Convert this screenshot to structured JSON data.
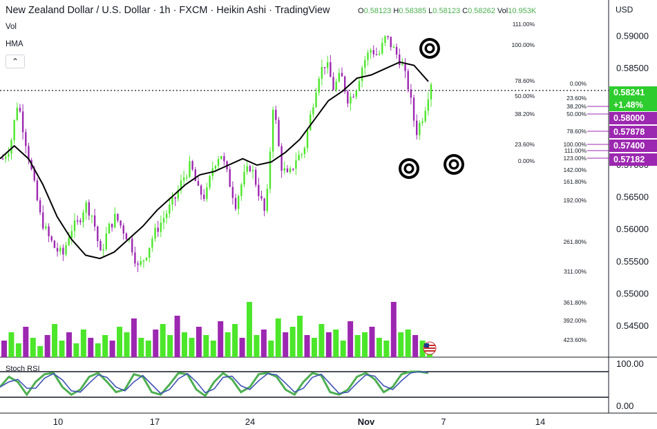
{
  "header": {
    "symbol_title": "New Zealand Dollar / U.S. Dollar · 1h · FXCM · Heikin Ashi · TradingView",
    "ohlc": [
      {
        "key": "O",
        "value": "0.58123"
      },
      {
        "key": "H",
        "value": "0.58385"
      },
      {
        "key": "L",
        "value": "0.58123"
      },
      {
        "key": "C",
        "value": "0.58262"
      },
      {
        "key": "Vol",
        "value": "10.953K"
      }
    ]
  },
  "indicators": {
    "vol": "Vol",
    "hma": "HMA",
    "stoch": "Stoch RSI"
  },
  "controls": {
    "collapse_icon": "chevron-up-icon"
  },
  "axis": {
    "currency": "USD",
    "price_ticks": [
      "0.59000",
      "0.58500",
      "0.58000",
      "0.57500",
      "0.57000",
      "0.56500",
      "0.56000",
      "0.55500",
      "0.55000",
      "0.54500"
    ],
    "stoch_ticks": [
      "100.00",
      "0.00"
    ],
    "date_ticks": [
      "10",
      "17",
      "24",
      "Nov",
      "7",
      "14"
    ]
  },
  "price_tags": [
    {
      "text": "0.58241",
      "color": "#2ecc2e"
    },
    {
      "text": "+1.48%",
      "color": "#2ecc2e"
    },
    {
      "text": "0.58000",
      "color": "#9c27b0"
    },
    {
      "text": "0.57878",
      "color": "#9c27b0"
    },
    {
      "text": "0.57400",
      "color": "#9c27b0"
    },
    {
      "text": "0.57182",
      "color": "#9c27b0"
    }
  ],
  "fib_left": [
    "111.00%",
    "100.00%",
    "78.60%",
    "50.00%",
    "38.20%",
    "23.60%",
    "0.00%"
  ],
  "fib_right": [
    "0.00%",
    "23.60%",
    "38.20%",
    "50.00%",
    "78.60%",
    "100.00%",
    "111.00%",
    "123.00%",
    "142.00%",
    "161.80%",
    "192.00%",
    "261.80%",
    "311.00%",
    "361.80%",
    "392.00%",
    "423.60%"
  ],
  "chart_data": {
    "type": "candlestick",
    "title": "New Zealand Dollar / U.S. Dollar · 1h · FXCM · Heikin Ashi · TradingView",
    "ylim": [
      0.542,
      0.5935
    ],
    "dates": [
      "10",
      "17",
      "24",
      "Nov",
      "7",
      "14"
    ],
    "price_path": [
      0.571,
      0.573,
      0.58,
      0.574,
      0.568,
      0.562,
      0.559,
      0.557,
      0.556,
      0.56,
      0.561,
      0.564,
      0.562,
      0.556,
      0.56,
      0.562,
      0.56,
      0.558,
      0.554,
      0.556,
      0.559,
      0.561,
      0.563,
      0.565,
      0.568,
      0.57,
      0.566,
      0.565,
      0.57,
      0.572,
      0.568,
      0.564,
      0.568,
      0.57,
      0.566,
      0.562,
      0.58,
      0.57,
      0.568,
      0.571,
      0.572,
      0.578,
      0.584,
      0.586,
      0.582,
      0.584,
      0.58,
      0.582,
      0.586,
      0.588,
      0.587,
      0.59,
      0.588,
      0.586,
      0.582,
      0.575,
      0.578,
      0.583
    ],
    "hma_path": [
      0.571,
      0.573,
      0.571,
      0.567,
      0.562,
      0.5585,
      0.556,
      0.5555,
      0.5565,
      0.5585,
      0.5605,
      0.563,
      0.565,
      0.567,
      0.5685,
      0.569,
      0.57,
      0.571,
      0.57,
      0.5705,
      0.572,
      0.574,
      0.577,
      0.58,
      0.5815,
      0.5835,
      0.584,
      0.585,
      0.586,
      0.5855,
      0.583
    ],
    "last_close": 0.58241,
    "change_pct": "+1.48%",
    "volume_k": [
      6,
      9,
      5,
      11,
      7,
      4,
      8,
      12,
      6,
      9,
      5,
      10,
      7,
      5,
      8,
      6,
      11,
      9,
      14,
      7,
      6,
      10,
      12,
      8,
      15,
      9,
      7,
      11,
      8,
      6,
      13,
      9,
      12,
      7,
      20,
      8,
      10,
      6,
      14,
      9,
      11,
      15,
      8,
      7,
      12,
      9,
      10,
      6,
      13,
      8,
      9,
      11,
      7,
      6,
      20,
      9,
      10,
      8,
      6,
      5
    ],
    "stoch_rsi": [
      40,
      80,
      60,
      10,
      60,
      90,
      95,
      40,
      10,
      30,
      80,
      95,
      60,
      20,
      30,
      90,
      80,
      20,
      10,
      50,
      95,
      90,
      30,
      5,
      60,
      95,
      70,
      20,
      40,
      90,
      95,
      80,
      30,
      10,
      60,
      95,
      85,
      20,
      10,
      30,
      80,
      95,
      70,
      20,
      40,
      90,
      100,
      100,
      95
    ]
  }
}
